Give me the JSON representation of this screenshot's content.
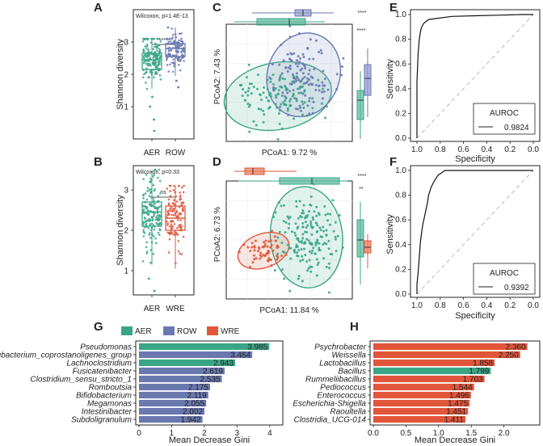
{
  "colors": {
    "AER": "#3aa585",
    "ROW": "#6a78b0",
    "WRE": "#e1553a",
    "ellipse_AER": "#59b79b",
    "ellipse_ROW": "#8b97c8",
    "ellipse_WRE": "#e97656"
  },
  "panel_labels": {
    "A": "A",
    "B": "B",
    "C": "C",
    "D": "D",
    "E": "E",
    "F": "F",
    "G": "G",
    "H": "H"
  },
  "chart_data": [
    {
      "id": "A",
      "type": "box",
      "title": "Wilcoxon, p=1.4E-13",
      "ylabel": "Shannon diversity",
      "categories": [
        "AER",
        "ROW"
      ],
      "ylim": [
        0,
        4
      ],
      "yticks": [
        "1",
        "2",
        "3"
      ],
      "significance": "****",
      "series": [
        {
          "name": "AER",
          "q1": 2.15,
          "median": 2.45,
          "q3": 2.65,
          "whisker_low": 1.55,
          "whisker_high": 3.1,
          "outliers": [
            0.25,
            0.6,
            1.0,
            1.3
          ]
        },
        {
          "name": "ROW",
          "q1": 2.55,
          "median": 2.8,
          "q3": 2.95,
          "whisker_low": 1.95,
          "whisker_high": 3.45,
          "outliers": [
            1.6,
            1.8
          ]
        }
      ]
    },
    {
      "id": "B",
      "type": "box",
      "title": "Wilcoxon, p=0.33",
      "ylabel": "Shannon diversity",
      "categories": [
        "AER",
        "WRE"
      ],
      "ylim": [
        0.4,
        3.6
      ],
      "yticks": [
        "1",
        "2",
        "3"
      ],
      "significance": "ns",
      "series": [
        {
          "name": "AER",
          "q1": 2.1,
          "median": 2.45,
          "q3": 2.7,
          "whisker_low": 1.15,
          "whisker_high": 3.5,
          "outliers": [
            0.5,
            0.8
          ]
        },
        {
          "name": "WRE",
          "q1": 2.0,
          "median": 2.3,
          "q3": 2.6,
          "whisker_low": 1.05,
          "whisker_high": 3.1,
          "outliers": []
        }
      ]
    },
    {
      "id": "C",
      "type": "scatter",
      "xlabel": "PCoA1:  9.72 %",
      "ylabel": "PCoA2:  7.43 %",
      "groups": [
        "AER",
        "ROW"
      ],
      "significance_top": "****",
      "significance_right": "****",
      "clusters": [
        {
          "name": "AER",
          "cx": -0.2,
          "cy": -0.25,
          "sx": 0.45,
          "sy": 0.3,
          "n": 130
        },
        {
          "name": "ROW",
          "cx": 0.25,
          "cy": 0.15,
          "sx": 0.3,
          "sy": 0.38,
          "n": 120
        }
      ]
    },
    {
      "id": "D",
      "type": "scatter",
      "xlabel": "PCoA1:  11.84 %",
      "ylabel": "PCoA2:  6.73 %",
      "groups": [
        "AER",
        "WRE"
      ],
      "significance_top": "****",
      "significance_right": "**",
      "clusters": [
        {
          "name": "AER",
          "cx": 0.3,
          "cy": 0.05,
          "sx": 0.3,
          "sy": 0.45,
          "n": 180
        },
        {
          "name": "WRE",
          "cx": -0.45,
          "cy": -0.2,
          "sx": 0.22,
          "sy": 0.15,
          "n": 60
        }
      ]
    },
    {
      "id": "E",
      "type": "line",
      "xlabel": "Specificity",
      "ylabel": "Sensitivity",
      "xticks": [
        "1.0",
        "0.8",
        "0.6",
        "0.4",
        "0.2",
        "0.0"
      ],
      "yticks": [
        "0.0",
        "0.2",
        "0.4",
        "0.6",
        "0.8",
        "1.0"
      ],
      "legend_title": "AUROC",
      "auc": "0.9824",
      "curve": [
        [
          1.0,
          0.0
        ],
        [
          1.0,
          0.45
        ],
        [
          0.99,
          0.68
        ],
        [
          0.98,
          0.8
        ],
        [
          0.97,
          0.86
        ],
        [
          0.96,
          0.9
        ],
        [
          0.94,
          0.93
        ],
        [
          0.9,
          0.96
        ],
        [
          0.82,
          0.97
        ],
        [
          0.7,
          0.985
        ],
        [
          0.5,
          0.99
        ],
        [
          0.3,
          0.995
        ],
        [
          0.1,
          1.0
        ],
        [
          0.0,
          1.0
        ]
      ]
    },
    {
      "id": "F",
      "type": "line",
      "xlabel": "Specificity",
      "ylabel": "Sensitivity",
      "xticks": [
        "1.0",
        "0.8",
        "0.6",
        "0.4",
        "0.2",
        "0.0"
      ],
      "yticks": [
        "0.0",
        "0.2",
        "0.4",
        "0.6",
        "0.8",
        "1.0"
      ],
      "legend_title": "AUROC",
      "auc": "0.9392",
      "curve": [
        [
          1.0,
          0.0
        ],
        [
          1.0,
          0.08
        ],
        [
          0.99,
          0.17
        ],
        [
          0.98,
          0.3
        ],
        [
          0.97,
          0.42
        ],
        [
          0.96,
          0.5
        ],
        [
          0.95,
          0.56
        ],
        [
          0.93,
          0.65
        ],
        [
          0.91,
          0.74
        ],
        [
          0.9,
          0.8
        ],
        [
          0.88,
          0.86
        ],
        [
          0.86,
          0.9
        ],
        [
          0.84,
          0.93
        ],
        [
          0.82,
          0.96
        ],
        [
          0.79,
          0.98
        ],
        [
          0.76,
          1.0
        ],
        [
          0.0,
          1.0
        ]
      ]
    },
    {
      "id": "G",
      "type": "bar",
      "orientation": "horizontal",
      "xlabel": "Mean Decrease Gini",
      "xlim": [
        0,
        4.3
      ],
      "xticks": [
        "0",
        "1",
        "2",
        "3",
        "4"
      ],
      "categories": [
        "Pseudomonas",
        "Eubacterium_coprostanoligenes_group",
        "Lachnoclostridium",
        "Fusicatenibacter",
        "Clostridium_sensu_stricto_1",
        "Romboutsia",
        "Bifidobacterium",
        "Megamonas",
        "Intestinibacter",
        "Subdoligranulum"
      ],
      "values": [
        3.985,
        3.464,
        2.943,
        2.619,
        2.535,
        2.175,
        2.119,
        2.055,
        2.002,
        1.942
      ],
      "value_labels": [
        "3.985",
        "3.464",
        "2.943",
        "2.619",
        "2.535",
        "2.175",
        "2.119",
        "2.055",
        "2.002",
        "1.942"
      ],
      "groups": [
        "AER",
        "ROW",
        "AER",
        "ROW",
        "ROW",
        "ROW",
        "ROW",
        "ROW",
        "ROW",
        "ROW"
      ]
    },
    {
      "id": "H",
      "type": "bar",
      "orientation": "horizontal",
      "xlabel": "Mean Decrease Gini",
      "xlim": [
        0,
        2.5
      ],
      "xticks": [
        "0.0",
        "0.5",
        "1.0",
        "1.5",
        "2.0"
      ],
      "categories": [
        "Psychrobacter",
        "Weissella",
        "Lactobacillus",
        "Bacillus",
        "Rummeliibacillus",
        "Pediococcus",
        "Enterococcus",
        "Escherichia-Shigella",
        "Raoultella",
        "Clostridia_UCG-014"
      ],
      "values": [
        2.36,
        2.25,
        1.858,
        1.799,
        1.703,
        1.544,
        1.496,
        1.475,
        1.451,
        1.411
      ],
      "value_labels": [
        "2.360",
        "2.250",
        "1.858",
        "1.799",
        "1.703",
        "1.544",
        "1.496",
        "1.475",
        "1.451",
        "1.411"
      ],
      "groups": [
        "WRE",
        "WRE",
        "WRE",
        "AER",
        "WRE",
        "WRE",
        "WRE",
        "WRE",
        "WRE",
        "WRE"
      ]
    }
  ],
  "legend": [
    {
      "key": "AER",
      "label": "AER"
    },
    {
      "key": "ROW",
      "label": "ROW"
    },
    {
      "key": "WRE",
      "label": "WRE"
    }
  ]
}
